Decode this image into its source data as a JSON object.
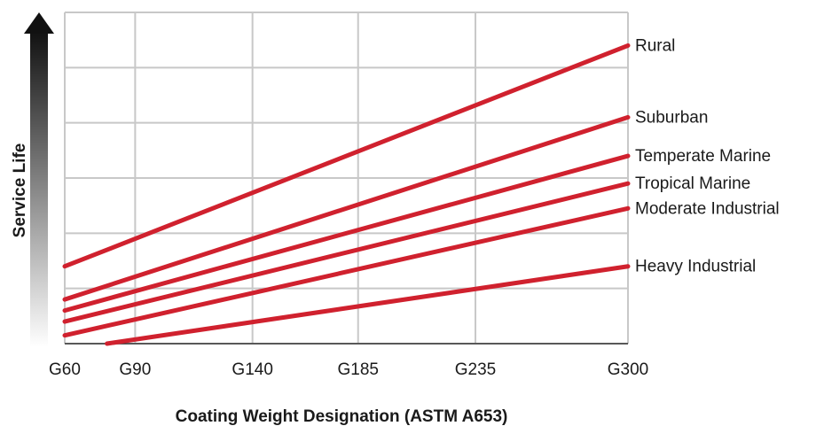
{
  "chart_data": {
    "type": "line",
    "title": "",
    "xlabel": "Coating Weight Designation (ASTM A653)",
    "ylabel": "Service Life",
    "categories": [
      "G60",
      "G90",
      "G140",
      "G185",
      "G235",
      "G300"
    ],
    "x_values": [
      60,
      90,
      140,
      185,
      235,
      300
    ],
    "ylim": [
      0,
      6
    ],
    "y_ticks_labeled": false,
    "grid": true,
    "line_color": "#d0212e",
    "series": [
      {
        "name": "Rural",
        "start": {
          "x": 60,
          "y": 1.4
        },
        "end": {
          "x": 300,
          "y": 5.4
        }
      },
      {
        "name": "Suburban",
        "start": {
          "x": 60,
          "y": 0.8
        },
        "end": {
          "x": 300,
          "y": 4.1
        }
      },
      {
        "name": "Temperate Marine",
        "start": {
          "x": 60,
          "y": 0.6
        },
        "end": {
          "x": 300,
          "y": 3.4
        }
      },
      {
        "name": "Tropical Marine",
        "start": {
          "x": 60,
          "y": 0.4
        },
        "end": {
          "x": 300,
          "y": 2.9
        }
      },
      {
        "name": "Moderate Industrial",
        "start": {
          "x": 60,
          "y": 0.15
        },
        "end": {
          "x": 300,
          "y": 2.45
        }
      },
      {
        "name": "Heavy Industrial",
        "start": {
          "x": 78,
          "y": 0.0
        },
        "end": {
          "x": 300,
          "y": 1.4
        }
      }
    ]
  }
}
